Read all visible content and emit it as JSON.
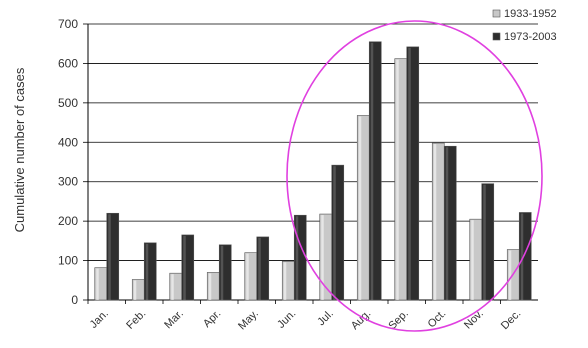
{
  "chart_data": {
    "type": "bar",
    "ylabel": "Cumulative number of cases",
    "ylim": [
      0,
      700
    ],
    "yticks": [
      "0",
      "100",
      "200",
      "300",
      "400",
      "500",
      "600",
      "700"
    ],
    "categories": [
      "Jan.",
      "Feb.",
      "Mar.",
      "Apr.",
      "May.",
      "Jun.",
      "Jul.",
      "Aug.",
      "Sep.",
      "Oct.",
      "Nov.",
      "Dec."
    ],
    "series": [
      {
        "name": "1933-1952",
        "color": "#c8c8c8",
        "values": [
          82,
          52,
          68,
          70,
          120,
          98,
          218,
          468,
          612,
          398,
          205,
          128
        ]
      },
      {
        "name": "1973-2003",
        "color": "#2e2e2e",
        "values": [
          220,
          145,
          165,
          140,
          160,
          215,
          342,
          655,
          642,
          390,
          295,
          222
        ]
      }
    ],
    "legend_position": "top-right",
    "grid": "horizontal",
    "annotation": {
      "shape": "ellipse",
      "color": "#e040e0",
      "categories_start": "Jul.",
      "categories_end": "Dec."
    }
  }
}
